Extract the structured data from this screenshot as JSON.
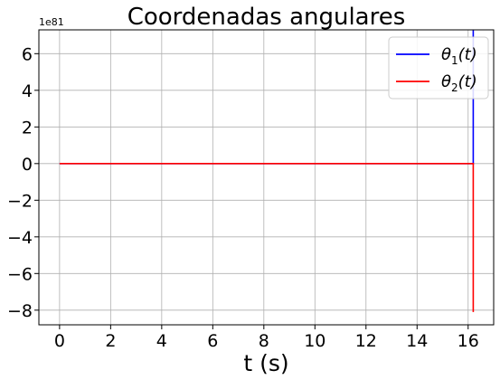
{
  "chart_data": {
    "type": "line",
    "title": "Coordenadas angulares",
    "xlabel": "t (s)",
    "ylabel": "",
    "y_offset_label": "1e81",
    "xlim": [
      -0.81,
      17.0
    ],
    "ylim": [
      -8.8,
      7.3
    ],
    "xticks": [
      0,
      2,
      4,
      6,
      8,
      10,
      12,
      14,
      16
    ],
    "yticks": [
      -8,
      -6,
      -4,
      -2,
      0,
      2,
      4,
      6
    ],
    "ytick_labels": [
      "−8",
      "−6",
      "−4",
      "−2",
      "0",
      "2",
      "4",
      "6"
    ],
    "grid": true,
    "legend_position": "top-right",
    "series": [
      {
        "name": "θ₁(t)",
        "legend_main": "θ",
        "legend_sub": "1",
        "legend_tail": "(t)",
        "color": "#0000ff",
        "x": [
          0,
          16.15,
          16.2,
          16.2
        ],
        "y": [
          0,
          0,
          0,
          7.3
        ]
      },
      {
        "name": "θ₂(t)",
        "legend_main": "θ",
        "legend_sub": "2",
        "legend_tail": "(t)",
        "color": "#ff0000",
        "x": [
          0,
          16.15,
          16.2,
          16.2
        ],
        "y": [
          0,
          0,
          0,
          -8.1
        ]
      }
    ]
  }
}
